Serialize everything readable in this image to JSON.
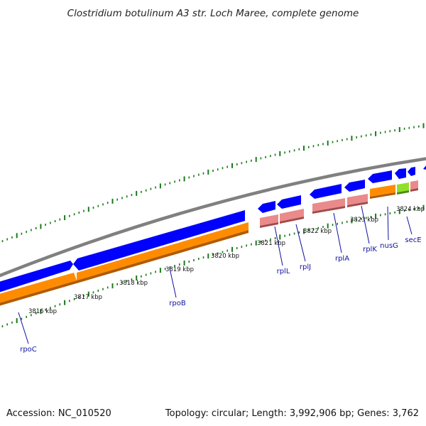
{
  "title": "Clostridium botulinum A3 str. Loch Maree, complete genome",
  "footer": {
    "accession": "Accession: NC_010520",
    "topology": "Topology: circular; Length: 3,992,906 bp; Genes: 3,762"
  },
  "colors": {
    "backbone": "#808080",
    "forward_gene": "#0000ff",
    "cds": "#ff8c00",
    "rna": "#ea8a8a",
    "special": "#8fe02a",
    "tick": "#1a7a1a",
    "label": "#1010a0"
  },
  "scale_labels": [
    "3816 kbp",
    "3817 kbp",
    "3818 kbp",
    "3819 kbp",
    "3820 kbp",
    "3821 kbp",
    "3822 kbp",
    "3823 kbp",
    "3824 kbp"
  ],
  "gene_labels": [
    "rpoC",
    "rpoB",
    "rplL",
    "rplJ",
    "rplA",
    "rplK",
    "nusG",
    "secE"
  ]
}
